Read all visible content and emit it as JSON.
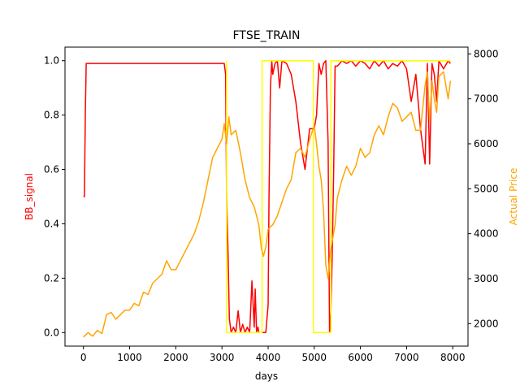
{
  "chart_data": {
    "type": "line",
    "title": "FTSE_TRAIN",
    "xlabel": "days",
    "ylabel": "BB_signal",
    "ylabel_right": "Actual Price",
    "xlim": [
      -400,
      8330
    ],
    "ylim": [
      -0.05,
      1.05
    ],
    "ylim_right": [
      1500,
      8150
    ],
    "x_ticks": [
      0,
      1000,
      2000,
      3000,
      4000,
      5000,
      6000,
      7000,
      8000
    ],
    "y_ticks": [
      0.0,
      0.2,
      0.4,
      0.6,
      0.8,
      1.0
    ],
    "y_ticks_right": [
      2000,
      3000,
      4000,
      5000,
      6000,
      7000,
      8000
    ],
    "grid": false,
    "colors": {
      "signal": "#ff0000",
      "price": "#ffa500",
      "position": "#ffff00",
      "axis_left": "#ff0000",
      "axis_right": "#ffa500"
    },
    "series": [
      {
        "axis": "left",
        "color": "#ff0000",
        "x": [
          0,
          20,
          40,
          60,
          80,
          3050,
          3080,
          3100,
          3130,
          3160,
          3200,
          3250,
          3300,
          3350,
          3400,
          3450,
          3500,
          3550,
          3600,
          3650,
          3700,
          3720,
          3750,
          3780,
          3800,
          3850,
          3900,
          3950,
          4000,
          4020,
          4050,
          4080,
          4100,
          4150,
          4200,
          4250,
          4300,
          4400,
          4500,
          4600,
          4700,
          4800,
          4900,
          5000,
          5050,
          5100,
          5150,
          5200,
          5250,
          5300,
          5330,
          5360,
          5390,
          5420,
          5450,
          5500,
          5550,
          5600,
          5700,
          5800,
          5900,
          6000,
          6100,
          6200,
          6300,
          6400,
          6500,
          6600,
          6700,
          6800,
          6900,
          7000,
          7100,
          7200,
          7300,
          7400,
          7450,
          7500,
          7550,
          7600,
          7650,
          7700,
          7800,
          7900,
          7950
        ],
        "values": [
          0.5,
          0.5,
          0.8,
          0.99,
          0.99,
          0.99,
          0.95,
          0.5,
          0.3,
          0.05,
          0.0,
          0.02,
          0.0,
          0.08,
          0.0,
          0.03,
          0.0,
          0.02,
          0.0,
          0.19,
          0.02,
          0.16,
          0.0,
          0.02,
          0.0,
          0.0,
          0.0,
          0.0,
          0.1,
          0.5,
          0.9,
          1.0,
          0.95,
          0.99,
          1.0,
          0.9,
          1.0,
          0.99,
          0.95,
          0.85,
          0.7,
          0.6,
          0.75,
          0.75,
          0.8,
          0.99,
          0.95,
          0.99,
          1.0,
          0.7,
          0.0,
          0.08,
          0.3,
          0.6,
          0.98,
          0.98,
          0.99,
          1.0,
          0.99,
          1.0,
          0.98,
          1.0,
          0.99,
          0.97,
          1.0,
          0.98,
          1.0,
          0.97,
          0.99,
          0.98,
          1.0,
          0.97,
          0.85,
          0.95,
          0.75,
          0.62,
          0.99,
          0.62,
          0.99,
          0.95,
          0.85,
          1.0,
          0.97,
          1.0,
          0.99
        ]
      },
      {
        "axis": "left",
        "color": "#ffff00",
        "x": [
          3100,
          3100,
          3870,
          3870,
          4980,
          4980,
          5360,
          5360,
          7950
        ],
        "values": [
          1.0,
          0.0,
          0.0,
          1.0,
          1.0,
          0.0,
          0.0,
          1.0,
          1.0
        ]
      },
      {
        "axis": "right",
        "color": "#ffa500",
        "x": [
          0,
          100,
          200,
          300,
          400,
          500,
          600,
          700,
          800,
          900,
          1000,
          1100,
          1200,
          1300,
          1400,
          1500,
          1600,
          1700,
          1800,
          1900,
          2000,
          2100,
          2200,
          2300,
          2400,
          2500,
          2600,
          2700,
          2800,
          2900,
          3000,
          3050,
          3100,
          3150,
          3200,
          3300,
          3400,
          3500,
          3600,
          3700,
          3800,
          3850,
          3900,
          3950,
          4000,
          4100,
          4200,
          4300,
          4400,
          4500,
          4600,
          4700,
          4800,
          4900,
          5000,
          5050,
          5100,
          5150,
          5200,
          5250,
          5300,
          5350,
          5400,
          5450,
          5500,
          5600,
          5700,
          5800,
          5900,
          6000,
          6100,
          6200,
          6300,
          6400,
          6500,
          6600,
          6700,
          6800,
          6900,
          7000,
          7100,
          7200,
          7300,
          7400,
          7450,
          7500,
          7550,
          7600,
          7650,
          7700,
          7800,
          7900,
          7950
        ],
        "values": [
          1700,
          1800,
          1720,
          1850,
          1780,
          2200,
          2250,
          2100,
          2200,
          2300,
          2300,
          2450,
          2400,
          2700,
          2650,
          2900,
          3000,
          3100,
          3400,
          3200,
          3200,
          3400,
          3600,
          3800,
          4000,
          4300,
          4700,
          5200,
          5700,
          5900,
          6100,
          6450,
          6000,
          6600,
          6200,
          6300,
          5800,
          5200,
          4800,
          4600,
          4200,
          3700,
          3500,
          3700,
          4100,
          4200,
          4400,
          4700,
          5000,
          5200,
          5800,
          5900,
          5700,
          6100,
          6400,
          6000,
          5500,
          5200,
          4500,
          3300,
          3000,
          3600,
          3900,
          4200,
          4800,
          5200,
          5500,
          5300,
          5500,
          5900,
          5700,
          5800,
          6200,
          6400,
          6200,
          6600,
          6900,
          6800,
          6500,
          6600,
          6700,
          6300,
          6300,
          7300,
          7600,
          6500,
          7400,
          7000,
          6700,
          7500,
          7600,
          7000,
          7400
        ]
      }
    ]
  }
}
